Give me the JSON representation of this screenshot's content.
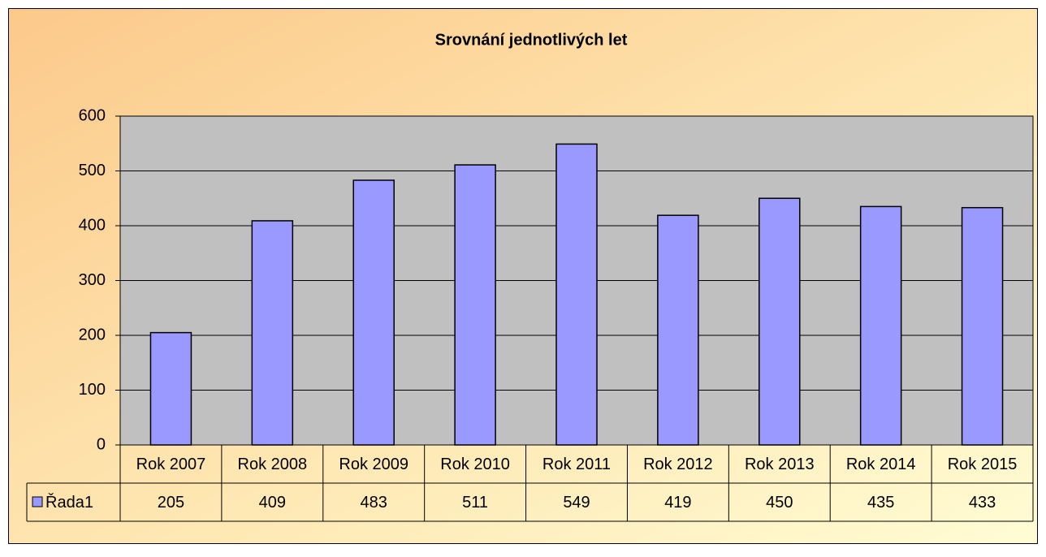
{
  "chart_data": {
    "type": "bar",
    "title": "Srovnání jednotlivých let",
    "categories": [
      "Rok 2007",
      "Rok 2008",
      "Rok 2009",
      "Rok 2010",
      "Rok 2011",
      "Rok 2012",
      "Rok 2013",
      "Rok 2014",
      "Rok 2015"
    ],
    "series": [
      {
        "name": "Řada1",
        "color": "#9999ff",
        "values": [
          205,
          409,
          483,
          511,
          549,
          419,
          450,
          435,
          433
        ]
      }
    ],
    "ylim": [
      0,
      600
    ],
    "yticks": [
      0,
      100,
      200,
      300,
      400,
      500,
      600
    ],
    "grid": true,
    "plot_background": "#c0c0c0"
  }
}
